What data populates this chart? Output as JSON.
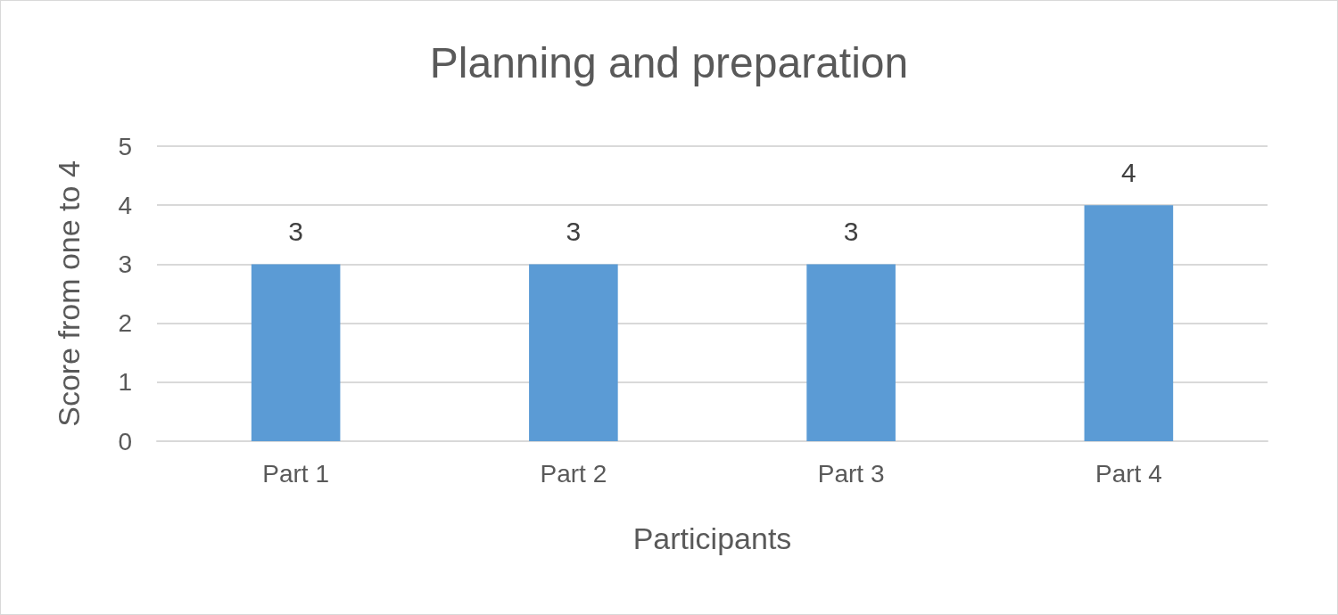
{
  "chart_data": {
    "type": "bar",
    "title": "Planning and preparation",
    "xlabel": "Participants",
    "ylabel": "Score from one to 4",
    "categories": [
      "Part 1",
      "Part 2",
      "Part 3",
      "Part 4"
    ],
    "values": [
      3,
      3,
      3,
      4
    ],
    "color": "#5b9bd5",
    "ylim": [
      0,
      5
    ],
    "yticks": [
      0,
      1,
      2,
      3,
      4,
      5
    ],
    "grid": true,
    "data_labels": true
  }
}
